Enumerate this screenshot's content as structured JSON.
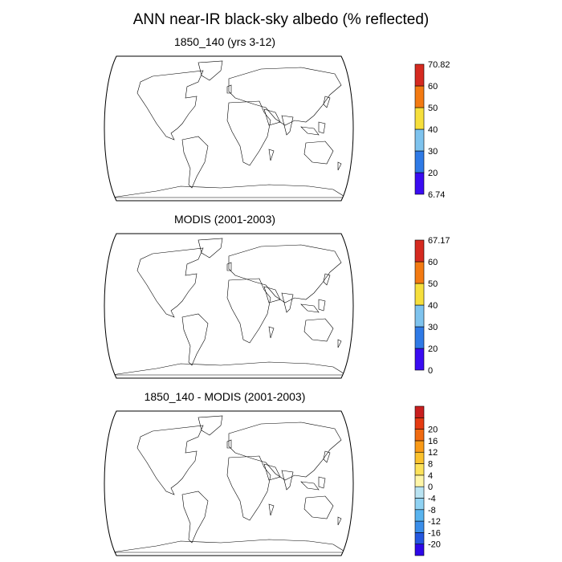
{
  "title": "ANN near-IR black-sky albedo (% reflected)",
  "panels": [
    {
      "title": "1850_140 (yrs 3-12)",
      "colorbar": {
        "colors": [
          "#3a0cf2",
          "#2f7ae6",
          "#7ec3ee",
          "#f6df3c",
          "#f37a12",
          "#d52a20"
        ],
        "labels": [
          "6.74",
          "20",
          "30",
          "40",
          "50",
          "60",
          "70.82"
        ]
      }
    },
    {
      "title": "MODIS (2001-2003)",
      "colorbar": {
        "colors": [
          "#3a0cf2",
          "#2f7ae6",
          "#7ec3ee",
          "#f6df3c",
          "#f37a12",
          "#d52a20"
        ],
        "labels": [
          "0",
          "20",
          "30",
          "40",
          "50",
          "60",
          "67.17"
        ]
      }
    },
    {
      "title": "1850_140 - MODIS (2001-2003)",
      "colorbar": {
        "colors": [
          "#2d08e8",
          "#2457e0",
          "#3a8eea",
          "#59b4ef",
          "#8fd2f3",
          "#b9e3f2",
          "#fff6a8",
          "#fde25a",
          "#fbc22d",
          "#f99a17",
          "#f06a10",
          "#e53b12",
          "#c81e1e"
        ],
        "labels": [
          "-20",
          "-16",
          "-12",
          "-8",
          "-4",
          "0",
          "4",
          "8",
          "12",
          "16",
          "20"
        ]
      }
    }
  ]
}
